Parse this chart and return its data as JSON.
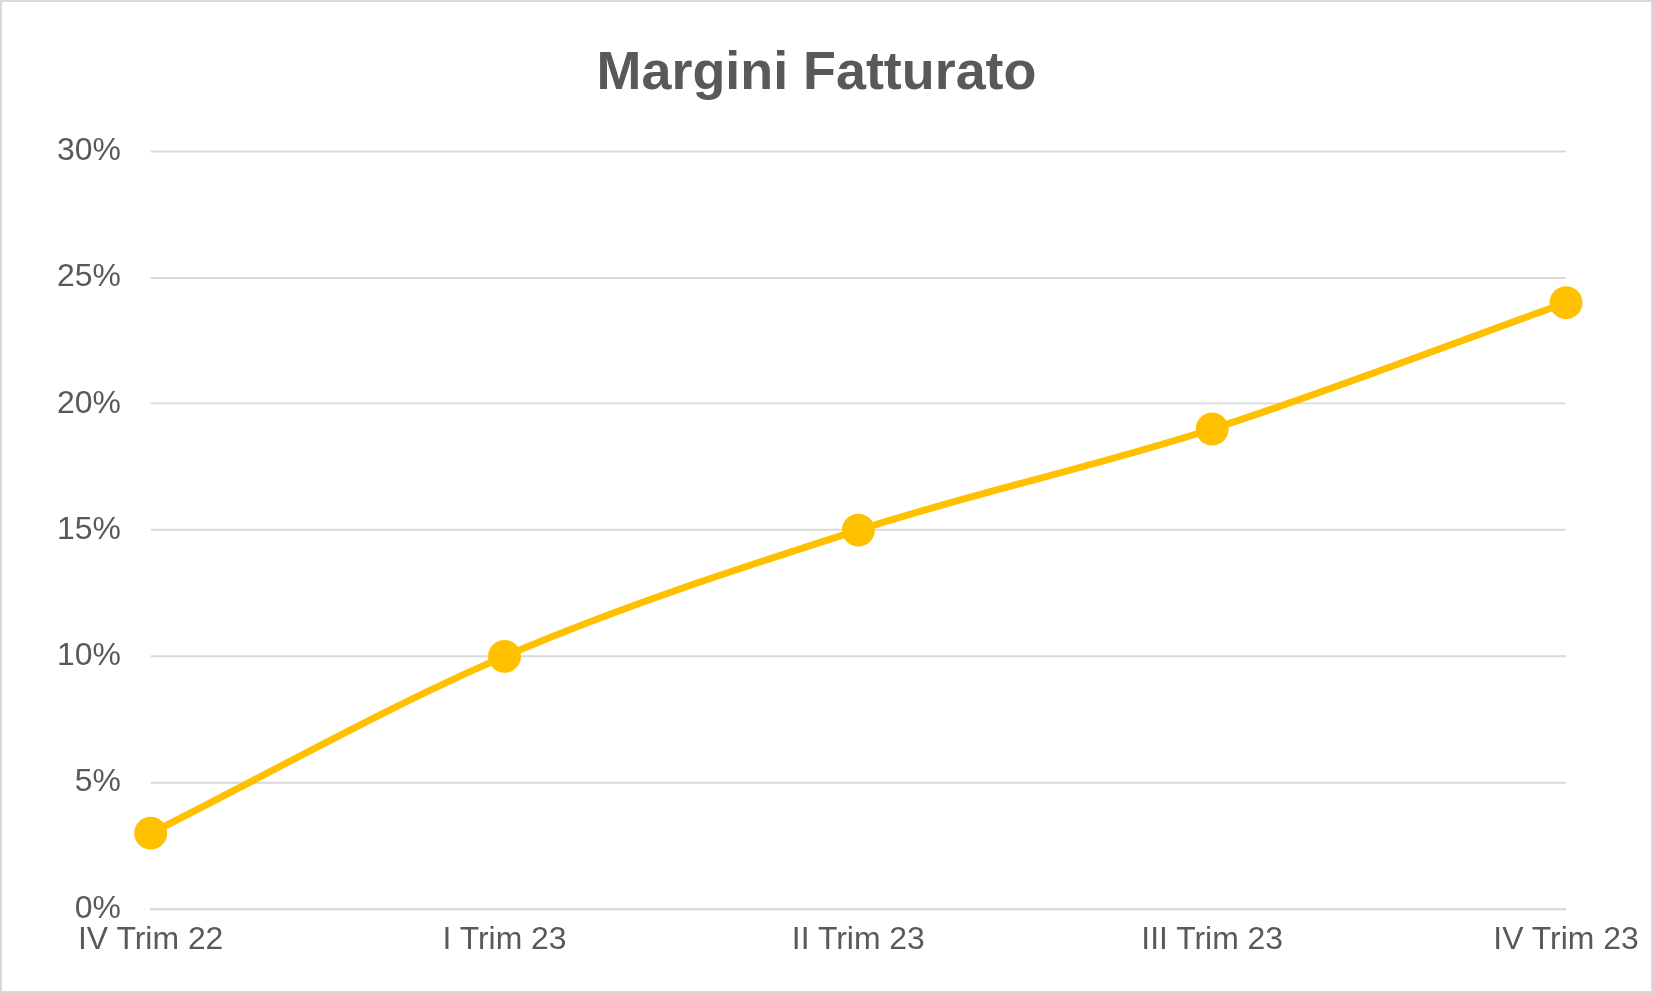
{
  "chart_data": {
    "type": "line",
    "title": "Margini Fatturato",
    "categories": [
      "IV Trim 22",
      "I Trim 23",
      "II Trim 23",
      "III Trim 23",
      "IV Trim 23"
    ],
    "series": [
      {
        "color": "#ffc000",
        "values": [
          3,
          10,
          15,
          19,
          24
        ]
      }
    ],
    "ylim": [
      0,
      30
    ],
    "yticks": [
      {
        "value": 0,
        "label": "0%"
      },
      {
        "value": 5,
        "label": "5%"
      },
      {
        "value": 10,
        "label": "10%"
      },
      {
        "value": 15,
        "label": "15%"
      },
      {
        "value": 20,
        "label": "20%"
      },
      {
        "value": 25,
        "label": "25%"
      },
      {
        "value": 30,
        "label": "30%"
      }
    ],
    "grid": "y",
    "legend": false,
    "marker": "circle",
    "line_style": "solid"
  }
}
